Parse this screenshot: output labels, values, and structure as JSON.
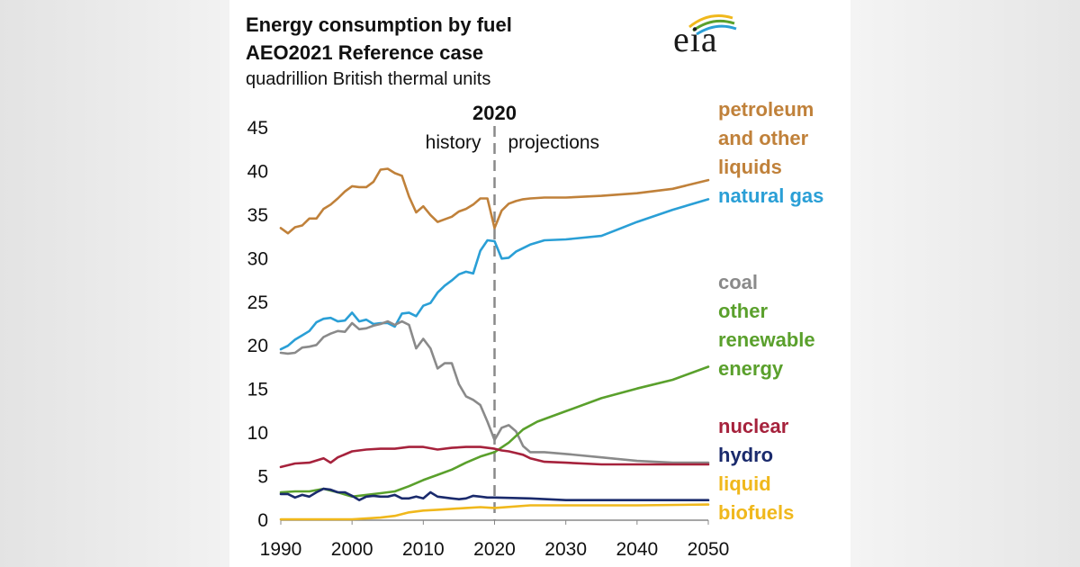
{
  "header": {
    "title_line1": "Energy consumption by fuel",
    "title_line2": "AEO2021 Reference case",
    "units": "quadrillion  British thermal units",
    "logo_text": "eia"
  },
  "chart_data": {
    "type": "line",
    "title": "Energy consumption by fuel",
    "subtitle": "AEO2021 Reference case",
    "ylabel": "quadrillion British thermal units",
    "xlabel": "",
    "xlim": [
      1990,
      2050
    ],
    "ylim": [
      0,
      45
    ],
    "x_ticks": [
      1990,
      2000,
      2010,
      2020,
      2030,
      2040,
      2050
    ],
    "y_ticks": [
      0,
      5,
      10,
      15,
      20,
      25,
      30,
      35,
      40,
      45
    ],
    "grid": false,
    "divider": {
      "x": 2020,
      "label": "2020",
      "left_label": "history",
      "right_label": "projections"
    },
    "series": [
      {
        "name": "petroleum and other liquids",
        "label_lines": [
          "petroleum",
          "and other",
          "liquids"
        ],
        "color": "#c0813a",
        "x": [
          1990,
          1991,
          1992,
          1993,
          1994,
          1995,
          1996,
          1997,
          1998,
          1999,
          2000,
          2001,
          2002,
          2003,
          2004,
          2005,
          2006,
          2007,
          2008,
          2009,
          2010,
          2011,
          2012,
          2013,
          2014,
          2015,
          2016,
          2017,
          2018,
          2019,
          2020,
          2021,
          2022,
          2023,
          2024,
          2025,
          2027,
          2030,
          2035,
          2040,
          2045,
          2050
        ],
        "y": [
          33.5,
          32.9,
          33.6,
          33.8,
          34.6,
          34.6,
          35.7,
          36.2,
          36.9,
          37.7,
          38.3,
          38.2,
          38.2,
          38.8,
          40.2,
          40.3,
          39.8,
          39.5,
          37.1,
          35.3,
          36.0,
          35.0,
          34.2,
          34.5,
          34.8,
          35.4,
          35.7,
          36.2,
          36.9,
          36.9,
          33.5,
          35.5,
          36.3,
          36.6,
          36.8,
          36.9,
          37.0,
          37.0,
          37.2,
          37.5,
          38.0,
          39.0
        ]
      },
      {
        "name": "natural gas",
        "label_lines": [
          "natural gas"
        ],
        "color": "#2a9fd6",
        "x": [
          1990,
          1991,
          1992,
          1993,
          1994,
          1995,
          1996,
          1997,
          1998,
          1999,
          2000,
          2001,
          2002,
          2003,
          2004,
          2005,
          2006,
          2007,
          2008,
          2009,
          2010,
          2011,
          2012,
          2013,
          2014,
          2015,
          2016,
          2017,
          2018,
          2019,
          2020,
          2021,
          2022,
          2023,
          2024,
          2025,
          2027,
          2030,
          2035,
          2040,
          2045,
          2050
        ],
        "y": [
          19.6,
          20.0,
          20.7,
          21.2,
          21.7,
          22.7,
          23.1,
          23.2,
          22.8,
          22.9,
          23.8,
          22.8,
          23.0,
          22.5,
          22.6,
          22.6,
          22.2,
          23.7,
          23.8,
          23.4,
          24.6,
          24.9,
          26.1,
          26.9,
          27.5,
          28.2,
          28.5,
          28.3,
          30.9,
          32.1,
          32.0,
          30.0,
          30.1,
          30.8,
          31.2,
          31.6,
          32.1,
          32.2,
          32.6,
          34.2,
          35.6,
          36.8
        ]
      },
      {
        "name": "coal",
        "label_lines": [
          "coal"
        ],
        "color": "#8a8a8a",
        "x": [
          1990,
          1991,
          1992,
          1993,
          1994,
          1995,
          1996,
          1997,
          1998,
          1999,
          2000,
          2001,
          2002,
          2003,
          2004,
          2005,
          2006,
          2007,
          2008,
          2009,
          2010,
          2011,
          2012,
          2013,
          2014,
          2015,
          2016,
          2017,
          2018,
          2019,
          2020,
          2021,
          2022,
          2023,
          2024,
          2025,
          2027,
          2030,
          2035,
          2040,
          2045,
          2050
        ],
        "y": [
          19.2,
          19.1,
          19.2,
          19.8,
          19.9,
          20.1,
          21.0,
          21.4,
          21.7,
          21.6,
          22.6,
          21.9,
          22.0,
          22.3,
          22.5,
          22.8,
          22.4,
          22.8,
          22.4,
          19.7,
          20.8,
          19.7,
          17.4,
          18.0,
          18.0,
          15.6,
          14.2,
          13.8,
          13.2,
          11.3,
          9.2,
          10.6,
          10.9,
          10.2,
          8.5,
          7.8,
          7.8,
          7.6,
          7.2,
          6.8,
          6.6,
          6.6
        ]
      },
      {
        "name": "other renewable energy",
        "label_lines": [
          "other",
          "renewable",
          "energy"
        ],
        "color": "#5aa02c",
        "x": [
          1990,
          1992,
          1994,
          1996,
          1998,
          2000,
          2002,
          2004,
          2006,
          2008,
          2010,
          2012,
          2014,
          2016,
          2018,
          2020,
          2022,
          2024,
          2026,
          2030,
          2035,
          2040,
          2045,
          2050
        ],
        "y": [
          3.2,
          3.3,
          3.3,
          3.6,
          3.2,
          2.7,
          2.9,
          3.1,
          3.3,
          3.9,
          4.6,
          5.2,
          5.8,
          6.6,
          7.3,
          7.8,
          8.9,
          10.4,
          11.3,
          12.5,
          14.0,
          15.1,
          16.1,
          17.6
        ]
      },
      {
        "name": "nuclear",
        "label_lines": [
          "nuclear"
        ],
        "color": "#a6223c",
        "x": [
          1990,
          1992,
          1994,
          1996,
          1997,
          1998,
          2000,
          2002,
          2004,
          2006,
          2008,
          2010,
          2012,
          2014,
          2016,
          2018,
          2020,
          2021,
          2022,
          2023,
          2024,
          2025,
          2027,
          2030,
          2035,
          2040,
          2045,
          2050
        ],
        "y": [
          6.1,
          6.5,
          6.6,
          7.1,
          6.6,
          7.2,
          7.9,
          8.1,
          8.2,
          8.2,
          8.4,
          8.4,
          8.1,
          8.3,
          8.4,
          8.4,
          8.2,
          8.0,
          7.9,
          7.7,
          7.5,
          7.1,
          6.7,
          6.6,
          6.4,
          6.4,
          6.4,
          6.4
        ]
      },
      {
        "name": "hydro",
        "label_lines": [
          "hydro"
        ],
        "color": "#1a2a6c",
        "x": [
          1990,
          1991,
          1992,
          1993,
          1994,
          1995,
          1996,
          1997,
          1998,
          1999,
          2000,
          2001,
          2002,
          2003,
          2004,
          2005,
          2006,
          2007,
          2008,
          2009,
          2010,
          2011,
          2012,
          2013,
          2014,
          2015,
          2016,
          2017,
          2018,
          2019,
          2020,
          2025,
          2030,
          2035,
          2040,
          2045,
          2050
        ],
        "y": [
          3.0,
          3.0,
          2.6,
          2.9,
          2.7,
          3.2,
          3.6,
          3.5,
          3.2,
          3.2,
          2.8,
          2.3,
          2.7,
          2.8,
          2.7,
          2.7,
          2.9,
          2.5,
          2.5,
          2.7,
          2.5,
          3.2,
          2.7,
          2.6,
          2.5,
          2.4,
          2.5,
          2.8,
          2.7,
          2.6,
          2.6,
          2.5,
          2.3,
          2.3,
          2.3,
          2.3,
          2.3
        ]
      },
      {
        "name": "liquid biofuels",
        "label_lines": [
          "liquid",
          "biofuels"
        ],
        "color": "#f0b81c",
        "x": [
          1990,
          1995,
          2000,
          2002,
          2004,
          2006,
          2008,
          2010,
          2012,
          2014,
          2016,
          2018,
          2020,
          2025,
          2030,
          2040,
          2050
        ],
        "y": [
          0.1,
          0.1,
          0.1,
          0.2,
          0.3,
          0.5,
          0.9,
          1.1,
          1.2,
          1.3,
          1.4,
          1.5,
          1.4,
          1.7,
          1.7,
          1.7,
          1.8
        ]
      }
    ]
  }
}
